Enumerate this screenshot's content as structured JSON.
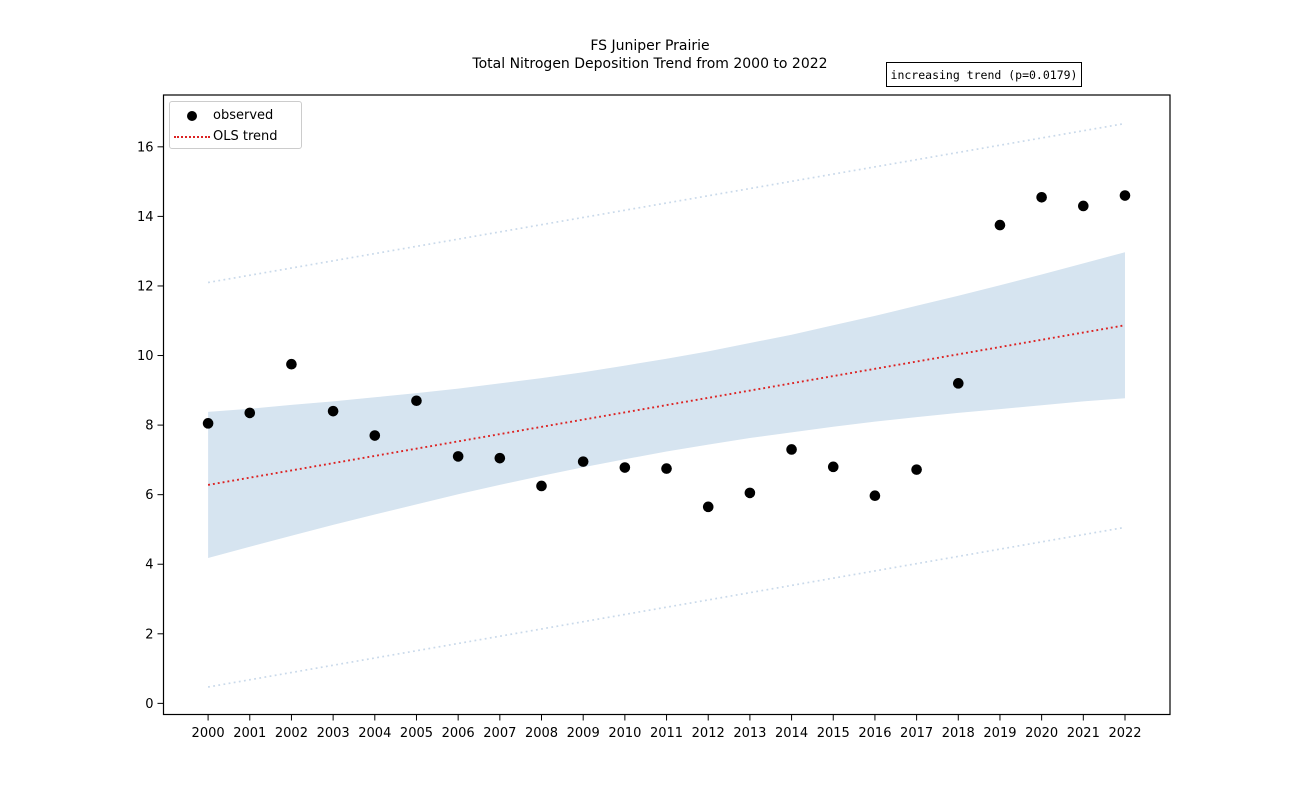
{
  "figure": {
    "title_line1": "FS Juniper Prairie",
    "title_line2": "Total Nitrogen Deposition Trend from 2000 to 2022",
    "annotation": "increasing trend (p=0.0179)"
  },
  "legend": {
    "items": [
      {
        "label": "observed",
        "marker": "black-dot",
        "color": "#000000"
      },
      {
        "label": "OLS trend",
        "marker": "red-dotted-line",
        "color": "#dc2222"
      }
    ]
  },
  "chart_data": {
    "type": "scatter",
    "title": "FS Juniper Prairie\nTotal Nitrogen Deposition Trend from 2000 to 2022",
    "xlabel": "",
    "ylabel": "",
    "xlim": [
      1998.93,
      2023.08
    ],
    "ylim": [
      -0.32,
      17.49
    ],
    "x_ticks": [
      2000,
      2001,
      2002,
      2003,
      2004,
      2005,
      2006,
      2007,
      2008,
      2009,
      2010,
      2011,
      2012,
      2013,
      2014,
      2015,
      2016,
      2017,
      2018,
      2019,
      2020,
      2021,
      2022
    ],
    "y_ticks": [
      0,
      2,
      4,
      6,
      8,
      10,
      12,
      14,
      16
    ],
    "grid": false,
    "legend_position": "upper left",
    "annotation": "increasing trend (p=0.0179)",
    "series": [
      {
        "name": "observed",
        "style": "scatter-black-dots",
        "x": [
          2000,
          2001,
          2002,
          2003,
          2004,
          2005,
          2006,
          2007,
          2008,
          2009,
          2010,
          2011,
          2012,
          2013,
          2014,
          2015,
          2016,
          2017,
          2018,
          2019,
          2020,
          2021,
          2022
        ],
        "y": [
          8.05,
          8.35,
          9.75,
          8.4,
          7.7,
          8.7,
          7.1,
          7.05,
          6.25,
          6.95,
          6.78,
          6.75,
          5.65,
          6.05,
          7.3,
          6.8,
          5.97,
          6.72,
          9.2,
          13.75,
          14.55,
          14.3,
          14.6
        ]
      },
      {
        "name": "OLS trend",
        "style": "red-dotted-line",
        "x": [
          2000,
          2022
        ],
        "y": [
          6.28,
          10.87
        ]
      }
    ],
    "ci_band": {
      "name": "95% confidence band",
      "x": [
        2000,
        2001,
        2002,
        2003,
        2004,
        2005,
        2006,
        2007,
        2008,
        2009,
        2010,
        2011,
        2012,
        2013,
        2014,
        2015,
        2016,
        2017,
        2018,
        2019,
        2020,
        2021,
        2022
      ],
      "upper": [
        8.38,
        8.47,
        8.58,
        8.68,
        8.8,
        8.92,
        9.05,
        9.2,
        9.35,
        9.52,
        9.71,
        9.91,
        10.12,
        10.36,
        10.6,
        10.87,
        11.14,
        11.43,
        11.72,
        12.02,
        12.33,
        12.65,
        12.97
      ],
      "lower": [
        4.18,
        4.5,
        4.82,
        5.13,
        5.43,
        5.72,
        6.01,
        6.28,
        6.54,
        6.79,
        7.02,
        7.24,
        7.44,
        7.63,
        7.79,
        7.95,
        8.1,
        8.23,
        8.35,
        8.46,
        8.57,
        8.68,
        8.77
      ]
    },
    "pi_lines": {
      "name": "prediction interval",
      "x": [
        2000,
        2022
      ],
      "upper": [
        12.1,
        16.67
      ],
      "lower": [
        0.47,
        5.06
      ]
    },
    "colors": {
      "observed": "#000000",
      "trend": "#dc2222",
      "ci_fill": "#d6e4f0",
      "pi_line": "#c9d9ea",
      "axis": "#000000"
    }
  }
}
